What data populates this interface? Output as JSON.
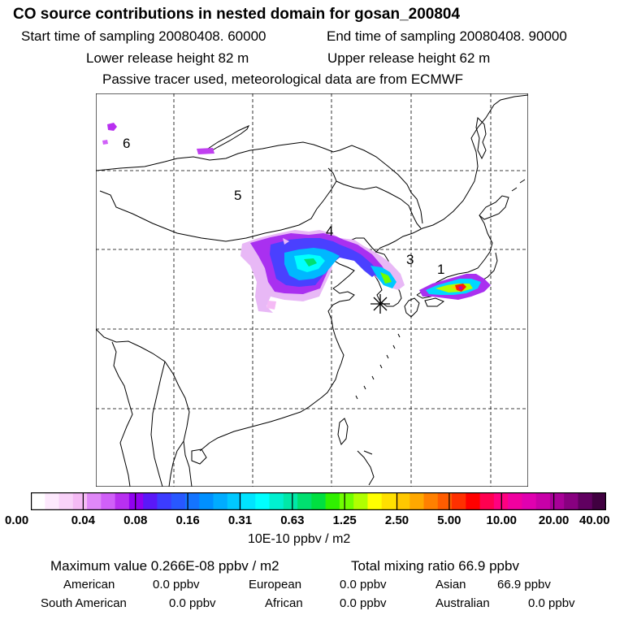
{
  "header": {
    "title": "CO  source contributions in nested domain for gosan_200804",
    "start_time": "Start time of sampling 20080408. 60000",
    "end_time": "End time of sampling 20080408. 90000",
    "lower_height": "Lower release height   82 m",
    "upper_height": "Upper release height   62 m",
    "note": "Passive tracer used, meteorological data are from ECMWF"
  },
  "map": {
    "region_labels": [
      "1",
      "3",
      "4",
      "5",
      "6"
    ],
    "receptor_symbol": "receptor-star"
  },
  "colorbar": {
    "ticks": [
      "0.00",
      "0.04",
      "0.08",
      "0.16",
      "0.31",
      "0.63",
      "1.25",
      "2.50",
      "5.00",
      "10.00",
      "20.00",
      "40.00"
    ],
    "colors": [
      "#ffffff",
      "#fde9fd",
      "#f9d2f9",
      "#f5baf5",
      "#e088f8",
      "#d060f8",
      "#b830f0",
      "#9000f0",
      "#5a18f8",
      "#3c3cff",
      "#2858ff",
      "#1474ff",
      "#0090ff",
      "#00acff",
      "#00c8ff",
      "#00e4ff",
      "#00ffff",
      "#00f0d0",
      "#00e8a8",
      "#00e070",
      "#00e040",
      "#30f000",
      "#70ff00",
      "#b0ff00",
      "#ffff00",
      "#ffe000",
      "#ffc800",
      "#ffa800",
      "#ff8000",
      "#ff5c00",
      "#ff3000",
      "#ff0000",
      "#ff0050",
      "#ff0080",
      "#f000a0",
      "#e000b0",
      "#c800a8",
      "#a80098",
      "#880080",
      "#600060",
      "#400040"
    ],
    "unit": "10E-10 ppbv / m2"
  },
  "summary": {
    "max_value": "Maximum value  0.266E-08 ppbv / m2",
    "total_mixing": "Total mixing ratio      66.9 ppbv",
    "contributions": [
      {
        "name": "American",
        "value": "0.0 ppbv"
      },
      {
        "name": "European",
        "value": "0.0 ppbv"
      },
      {
        "name": "Asian",
        "value": "66.9 ppbv"
      },
      {
        "name": "South American",
        "value": "0.0 ppbv"
      },
      {
        "name": "African",
        "value": "0.0 ppbv"
      },
      {
        "name": "Australian",
        "value": "0.0 ppbv"
      }
    ]
  }
}
